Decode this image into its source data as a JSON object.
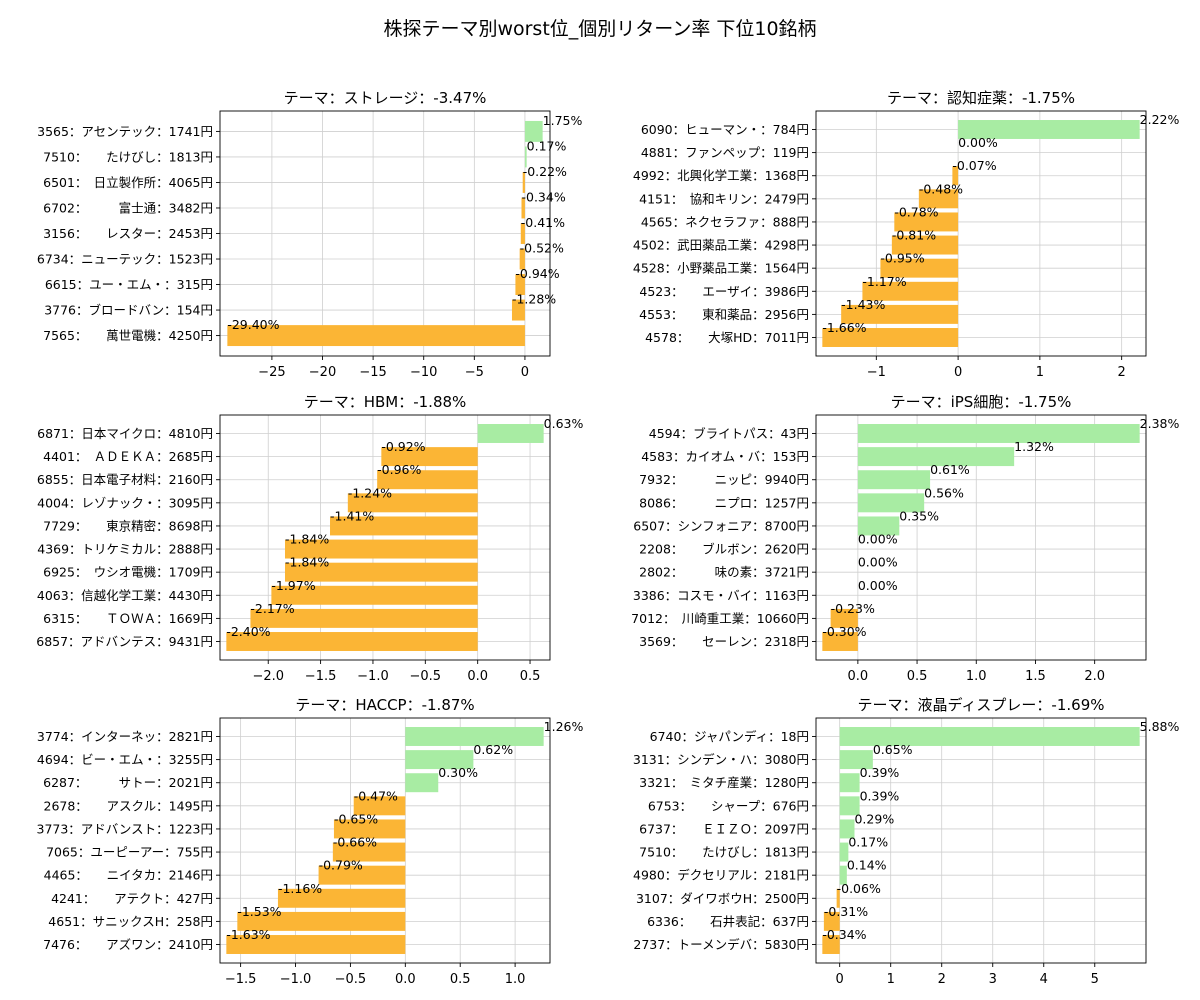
{
  "suptitle": "株探テーマ別worst位_個別リターン率 下位10銘柄",
  "colors": {
    "positive": "#a8eca3",
    "negative": "#fbb535",
    "grid": "#cfcfcf",
    "axis": "#000000"
  },
  "chart_data": [
    {
      "type": "bar",
      "orientation": "horizontal",
      "title": "テーマ：ストレージ：-3.47%",
      "categories": [
        "3565：アセンテック：1741円",
        "7510：　　たけびし：1813円",
        "6501：　日立製作所：4065円",
        "6702：　　　富士通：3482円",
        "3156：　　レスター：2453円",
        "6734：ニューテック：1523円",
        "6615：ユー・エム・：315円",
        "3776：ブロードバン：154円",
        "7565：　　萬世電機：4250円"
      ],
      "values": [
        1.75,
        0.17,
        -0.22,
        -0.34,
        -0.41,
        -0.52,
        -0.94,
        -1.28,
        -29.4
      ],
      "value_labels": [
        "1.75%",
        "0.17%",
        "-0.22%",
        "-0.34%",
        "-0.41%",
        "-0.52%",
        "-0.94%",
        "-1.28%",
        "-29.40%"
      ],
      "xlim": [
        -29.5,
        1.85
      ],
      "xticks": [
        -25,
        -20,
        -15,
        -10,
        -5,
        0
      ],
      "xtick_labels": [
        "−25",
        "−20",
        "−15",
        "−10",
        "−5",
        "0"
      ],
      "grid": true
    },
    {
      "type": "bar",
      "orientation": "horizontal",
      "title": "テーマ：認知症薬：-1.75%",
      "categories": [
        "6090：ヒューマン・：784円",
        "4881：ファンペップ：119円",
        "4992：北興化学工業：1368円",
        "4151：　協和キリン：2479円",
        "4565：ネクセラファ：888円",
        "4502：武田薬品工業：4298円",
        "4528：小野薬品工業：1564円",
        "4523：　　エーザイ：3986円",
        "4553：　　東和薬品：2956円",
        "4578：　　大塚HD：7011円"
      ],
      "values": [
        2.22,
        0.0,
        -0.07,
        -0.48,
        -0.78,
        -0.81,
        -0.95,
        -1.17,
        -1.43,
        -1.66
      ],
      "value_labels": [
        "2.22%",
        "0.00%",
        "-0.07%",
        "-0.48%",
        "-0.78%",
        "-0.81%",
        "-0.95%",
        "-1.17%",
        "-1.43%",
        "-1.66%"
      ],
      "xlim": [
        -1.66,
        2.22
      ],
      "xticks": [
        -1,
        0,
        1,
        2
      ],
      "xtick_labels": [
        "−1",
        "0",
        "1",
        "2"
      ],
      "grid": true
    },
    {
      "type": "bar",
      "orientation": "horizontal",
      "title": "テーマ：HBM：-1.88%",
      "categories": [
        "6871：日本マイクロ：4810円",
        "4401：　ＡＤＥＫＡ：2685円",
        "6855：日本電子材料：2160円",
        "4004：レゾナック・：3095円",
        "7729：　　東京精密：8698円",
        "4369：トリケミカル：2888円",
        "6925：　ウシオ電機：1709円",
        "4063：信越化学工業：4430円",
        "6315：　　ＴＯＷＡ：1669円",
        "6857：アドバンテス：9431円"
      ],
      "values": [
        0.63,
        -0.92,
        -0.96,
        -1.24,
        -1.41,
        -1.84,
        -1.84,
        -1.97,
        -2.17,
        -2.4
      ],
      "value_labels": [
        "0.63%",
        "-0.92%",
        "-0.96%",
        "-1.24%",
        "-1.41%",
        "-1.84%",
        "-1.84%",
        "-1.97%",
        "-2.17%",
        "-2.40%"
      ],
      "xlim": [
        -2.4,
        0.63
      ],
      "xticks": [
        -2.0,
        -1.5,
        -1.0,
        -0.5,
        0.0,
        0.5
      ],
      "xtick_labels": [
        "−2.0",
        "−1.5",
        "−1.0",
        "−0.5",
        "0.0",
        "0.5"
      ],
      "grid": true
    },
    {
      "type": "bar",
      "orientation": "horizontal",
      "title": "テーマ：iPS細胞：-1.75%",
      "categories": [
        "4594：ブライトパス：43円",
        "4583：カイオム・バ：153円",
        "7932：　　　ニッピ：9940円",
        "8086：　　　ニプロ：1257円",
        "6507：シンフォニア：8700円",
        "2208：　　ブルボン：2620円",
        "2802：　　　味の素：3721円",
        "3386：コスモ・バイ：1163円",
        "7012：　川崎重工業：10660円",
        "3569：　　セーレン：2318円"
      ],
      "values": [
        2.38,
        1.32,
        0.61,
        0.56,
        0.35,
        0.0,
        0.0,
        0.0,
        -0.23,
        -0.3
      ],
      "value_labels": [
        "2.38%",
        "1.32%",
        "0.61%",
        "0.56%",
        "0.35%",
        "0.00%",
        "0.00%",
        "0.00%",
        "-0.23%",
        "-0.30%"
      ],
      "xlim": [
        -0.3,
        2.38
      ],
      "xticks": [
        0.0,
        0.5,
        1.0,
        1.5,
        2.0
      ],
      "xtick_labels": [
        "0.0",
        "0.5",
        "1.0",
        "1.5",
        "2.0"
      ],
      "grid": true
    },
    {
      "type": "bar",
      "orientation": "horizontal",
      "title": "テーマ：HACCP：-1.87%",
      "categories": [
        "3774：インターネッ：2821円",
        "4694：ビー・エム・：3255円",
        "6287：　　　サトー：2021円",
        "2678：　　アスクル：1495円",
        "3773：アドバンスト：1223円",
        "7065：ユーピーアー：755円",
        "4465：　　ニイタカ：2146円",
        "4241：　　アテクト：427円",
        "4651：サニックスH：258円",
        "7476：　　アズワン：2410円"
      ],
      "values": [
        1.26,
        0.62,
        0.3,
        -0.47,
        -0.65,
        -0.66,
        -0.79,
        -1.16,
        -1.53,
        -1.63
      ],
      "value_labels": [
        "1.26%",
        "0.62%",
        "0.30%",
        "-0.47%",
        "-0.65%",
        "-0.66%",
        "-0.79%",
        "-1.16%",
        "-1.53%",
        "-1.63%"
      ],
      "xlim": [
        -1.63,
        1.26
      ],
      "xticks": [
        -1.5,
        -1.0,
        -0.5,
        0.0,
        0.5,
        1.0
      ],
      "xtick_labels": [
        "−1.5",
        "−1.0",
        "−0.5",
        "0.0",
        "0.5",
        "1.0"
      ],
      "grid": true
    },
    {
      "type": "bar",
      "orientation": "horizontal",
      "title": "テーマ：液晶ディスプレー：-1.69%",
      "categories": [
        "6740：ジャパンディ：18円",
        "3131：シンデン・ハ：3080円",
        "3321：　ミタチ産業：1280円",
        "6753：　　シャープ：676円",
        "6737：　　ＥＩＺＯ：2097円",
        "7510：　　たけびし：1813円",
        "4980：デクセリアル：2181円",
        "3107：ダイワボウH：2500円",
        "6336：　　石井表記：637円",
        "2737：トーメンデバ：5830円"
      ],
      "values": [
        5.88,
        0.65,
        0.39,
        0.39,
        0.29,
        0.17,
        0.14,
        -0.06,
        -0.31,
        -0.34
      ],
      "value_labels": [
        "5.88%",
        "0.65%",
        "0.39%",
        "0.39%",
        "0.29%",
        "0.17%",
        "0.14%",
        "-0.06%",
        "-0.31%",
        "-0.34%"
      ],
      "xlim": [
        -0.34,
        5.88
      ],
      "xticks": [
        0,
        1,
        2,
        3,
        4,
        5
      ],
      "xtick_labels": [
        "0",
        "1",
        "2",
        "3",
        "4",
        "5"
      ],
      "grid": true
    }
  ]
}
